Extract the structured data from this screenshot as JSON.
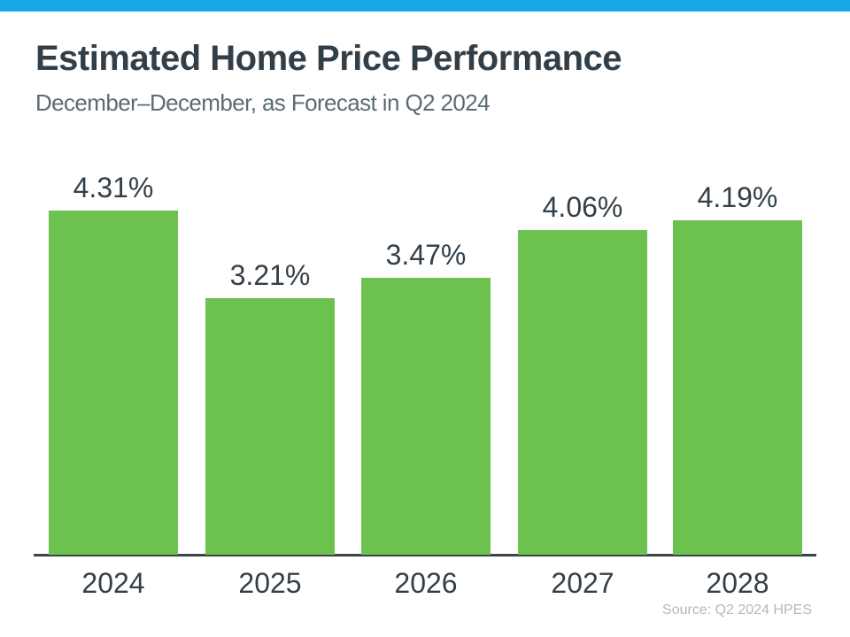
{
  "header": {
    "title": "Estimated Home Price Performance",
    "subtitle": "December–December, as Forecast in Q2 2024"
  },
  "footer": {
    "source": "Source: Q2 2024 HPES"
  },
  "colors": {
    "accent_blue": "#18A8EA",
    "bar_green": "#6DC24F",
    "text_dark": "#333F48",
    "text_subtitle": "#5C6B73",
    "text_source": "#AEBAC2",
    "axis": "#3A444C"
  },
  "chart_data": {
    "type": "bar",
    "title": "Estimated Home Price Performance",
    "subtitle": "December–December, as Forecast in Q2 2024",
    "categories": [
      "2024",
      "2025",
      "2026",
      "2027",
      "2028"
    ],
    "values": [
      4.31,
      3.21,
      3.47,
      4.06,
      4.19
    ],
    "value_labels": [
      "4.31%",
      "3.21%",
      "3.47%",
      "4.06%",
      "4.19%"
    ],
    "xlabel": "",
    "ylabel": "",
    "ylim": [
      0,
      4.7
    ],
    "grid": false,
    "legend": false,
    "bar_color": "#6DC24F",
    "source": "Source: Q2 2024 HPES"
  }
}
